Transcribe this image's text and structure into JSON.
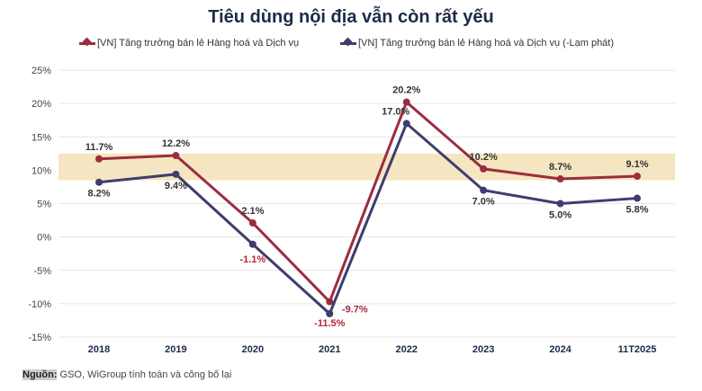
{
  "chart_data": {
    "type": "line",
    "title": "Tiêu dùng nội địa vẫn còn rất yếu",
    "categories": [
      "2018",
      "2019",
      "2020",
      "2021",
      "2022",
      "2023",
      "2024",
      "11T2025"
    ],
    "series": [
      {
        "name": "[VN] Tăng trưởng bán lẻ Hàng hoá và Dịch vụ",
        "color": "#9b2d3f",
        "values": [
          11.7,
          12.2,
          2.1,
          -9.7,
          20.2,
          10.2,
          8.7,
          9.1
        ],
        "labels": [
          "11.7%",
          "12.2%",
          "2.1%",
          "-9.7%",
          "20.2%",
          "10.2%",
          "8.7%",
          "9.1%"
        ]
      },
      {
        "name": "[VN] Tăng trưởng bán lẻ Hàng hoá và Dịch vụ (-Lạm phát)",
        "color": "#3f3d6e",
        "values": [
          8.2,
          9.4,
          -1.1,
          -11.5,
          17.0,
          7.0,
          5.0,
          5.8
        ],
        "labels": [
          "8.2%",
          "9.4%",
          "-1.1%",
          "-11.5%",
          "17.0%",
          "7.0%",
          "5.0%",
          "5.8%"
        ]
      }
    ],
    "yticks": [
      "25%",
      "20%",
      "15%",
      "10%",
      "5%",
      "0%",
      "-5%",
      "-10%",
      "-15%"
    ],
    "ylim": [
      -15,
      25
    ],
    "highlight_band": [
      8.5,
      12.5
    ],
    "highlight_color": "#f5e6bf",
    "grid": true,
    "legend": "top"
  },
  "source": {
    "label": "Nguồn:",
    "text": " GSO, WiGroup tính toán và công bố lại"
  }
}
